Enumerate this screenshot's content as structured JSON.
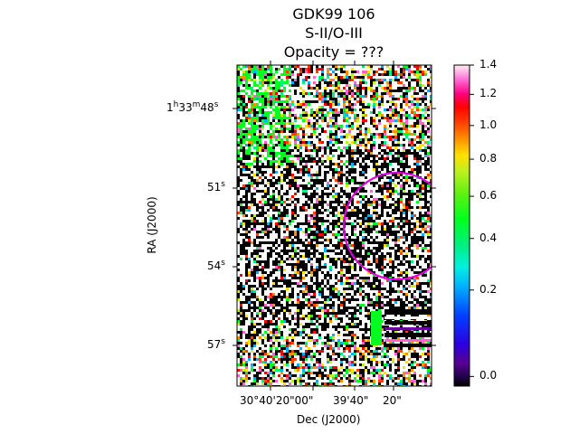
{
  "chart_data": {
    "type": "heatmap",
    "title_lines": [
      "GDK99 106",
      "S-II/O-III",
      "Opacity = ???"
    ],
    "xlabel": "Dec (J2000)",
    "ylabel": "RA (J2000)",
    "x_tick_labels": [
      "30°40'20\"00\"",
      "39'40\"",
      "20\""
    ],
    "y_tick_labels": [
      {
        "main": "1",
        "h": "h",
        "m_val": "33",
        "m": "m",
        "s_val": "48",
        "s": "s"
      },
      {
        "s_val": "51",
        "s": "s"
      },
      {
        "s_val": "54",
        "s": "s"
      },
      {
        "s_val": "57",
        "s": "s"
      }
    ],
    "colorbar": {
      "colormap": "gist_ncar",
      "ticks": [
        1.4,
        1.2,
        1.0,
        0.8,
        0.6,
        0.4,
        0.2,
        0.0
      ],
      "tick_labels": [
        "1.4",
        "1.2",
        "1.0",
        "0.8",
        "0.6",
        "0.4",
        "0.2",
        "0.0"
      ],
      "range": [
        0.0,
        1.4
      ],
      "scale": "nonlinear"
    },
    "region_marker": {
      "shape": "circle",
      "color": "#e000e0"
    }
  }
}
